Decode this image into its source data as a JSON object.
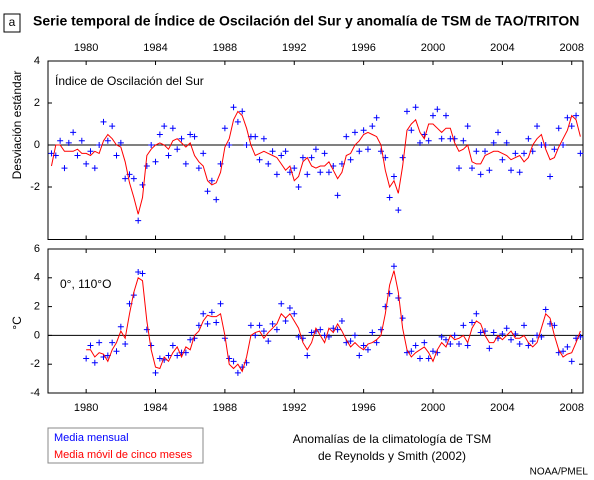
{
  "panel_label": "a",
  "title": "Serie temporal de Índice de Oscilación del Sur y anomalía de TSM de TAO/TRITON",
  "note": [
    "Anomalías de la climatología de TSM",
    "de Reynolds y Smith (2002)"
  ],
  "source": "NOAA/PMEL",
  "chart_data": [
    {
      "type": "line",
      "annotation": "Índice de Oscilación del Sur",
      "ylabel": "Desviación estándar",
      "xlim": [
        1977.8,
        2008.65
      ],
      "xticks": [
        1980,
        1984,
        1988,
        1992,
        1996,
        2000,
        2004,
        2008
      ],
      "xtick_side": "top",
      "ylim": [
        -4.5,
        4
      ],
      "yticks": [
        4,
        2,
        0,
        -2
      ],
      "zero_line": true,
      "x": [
        1978,
        1978.25,
        1978.5,
        1978.75,
        1979,
        1979.25,
        1979.5,
        1979.75,
        1980,
        1980.25,
        1980.5,
        1980.75,
        1981,
        1981.25,
        1981.5,
        1981.75,
        1982,
        1982.25,
        1982.5,
        1982.75,
        1983,
        1983.25,
        1983.5,
        1983.75,
        1984,
        1984.25,
        1984.5,
        1984.75,
        1985,
        1985.25,
        1985.5,
        1985.75,
        1986,
        1986.25,
        1986.5,
        1986.75,
        1987,
        1987.25,
        1987.5,
        1987.75,
        1988,
        1988.25,
        1988.5,
        1988.75,
        1989,
        1989.25,
        1989.5,
        1989.75,
        1990,
        1990.25,
        1990.5,
        1990.75,
        1991,
        1991.25,
        1991.5,
        1991.75,
        1992,
        1992.25,
        1992.5,
        1992.75,
        1993,
        1993.25,
        1993.5,
        1993.75,
        1994,
        1994.25,
        1994.5,
        1994.75,
        1995,
        1995.25,
        1995.5,
        1995.75,
        1996,
        1996.25,
        1996.5,
        1996.75,
        1997,
        1997.25,
        1997.5,
        1997.75,
        1998,
        1998.25,
        1998.5,
        1998.75,
        1999,
        1999.25,
        1999.5,
        1999.75,
        2000,
        2000.25,
        2000.5,
        2000.75,
        2001,
        2001.25,
        2001.5,
        2001.75,
        2002,
        2002.25,
        2002.5,
        2002.75,
        2003,
        2003.25,
        2003.5,
        2003.75,
        2004,
        2004.25,
        2004.5,
        2004.75,
        2005,
        2005.25,
        2005.5,
        2005.75,
        2006,
        2006.25,
        2006.5,
        2006.75,
        2007,
        2007.25,
        2007.5,
        2007.75,
        2008,
        2008.25,
        2008.5
      ],
      "series": [
        {
          "name": "Media mensual",
          "color": "#0000ff",
          "marker": "plus",
          "values": [
            -0.4,
            -0.5,
            0.2,
            -1.1,
            0.1,
            0.6,
            -0.5,
            0.2,
            -0.9,
            -0.3,
            -1.1,
            0.0,
            1.1,
            0.2,
            0.9,
            -0.5,
            0.1,
            -1.6,
            -1.4,
            -1.6,
            -3.6,
            -1.9,
            -1.0,
            0.0,
            -0.8,
            0.5,
            0.9,
            -0.5,
            0.8,
            -0.2,
            0.3,
            -0.9,
            0.5,
            0.4,
            -1.1,
            -0.4,
            -2.2,
            -1.7,
            -2.6,
            -0.9,
            0.8,
            0.0,
            1.8,
            1.1,
            1.6,
            0.0,
            0.4,
            0.4,
            -0.7,
            0.3,
            -0.9,
            -0.3,
            -1.4,
            -0.5,
            -0.3,
            -1.3,
            -1.1,
            -2.0,
            -0.6,
            -1.4,
            -0.6,
            -0.2,
            -1.3,
            -0.4,
            -1.3,
            -1.0,
            -2.4,
            -0.9,
            0.4,
            -0.7,
            0.6,
            -0.3,
            0.7,
            -0.2,
            0.9,
            1.3,
            -0.3,
            -0.6,
            -2.5,
            -1.5,
            -3.1,
            -0.6,
            1.6,
            0.7,
            1.8,
            0.1,
            0.5,
            0.2,
            1.4,
            1.7,
            0.3,
            1.4,
            0.3,
            0.3,
            -1.1,
            0.2,
            0.9,
            -1.1,
            -0.3,
            -1.4,
            -0.3,
            -1.2,
            0.1,
            0.6,
            -0.7,
            0.1,
            -1.2,
            -0.4,
            -1.3,
            -0.4,
            0.3,
            -0.3,
            0.9,
            0.0,
            0.0,
            -1.5,
            -0.2,
            0.8,
            0.0,
            1.3,
            0.9,
            1.4,
            -0.4
          ]
        },
        {
          "name": "Media móvil de cinco meses",
          "color": "#ff0000",
          "marker": "line",
          "values": [
            -1.0,
            0,
            0,
            -0.3,
            -0.3,
            -0.3,
            -0.2,
            -0.4,
            -0.4,
            -0.5,
            -0.3,
            -0.4,
            0.2,
            0.5,
            0.3,
            0.0,
            -0.1,
            -0.8,
            -1.8,
            -2.5,
            -3.3,
            -2.5,
            -0.5,
            -0.2,
            0.0,
            0.1,
            0.0,
            -0.2,
            0.2,
            0.3,
            0.1,
            -0.1,
            0.1,
            -0.5,
            -0.8,
            -1.0,
            -1.7,
            -1.9,
            -1.8,
            -1.3,
            -0.1,
            0.3,
            1.2,
            1.6,
            1.4,
            0.8,
            0.0,
            -0.5,
            -0.4,
            -0.3,
            -0.4,
            -0.5,
            -0.6,
            -0.9,
            -1.2,
            -1.0,
            -1.7,
            -1.5,
            -0.8,
            -0.6,
            -1.0,
            -1.1,
            -1.0,
            -1.0,
            -0.8,
            -1.2,
            -1.6,
            -1.3,
            -0.5,
            -0.4,
            0.0,
            0.2,
            0.5,
            0.6,
            0.5,
            0.4,
            0.0,
            -1.2,
            -2.0,
            -1.7,
            -2.3,
            -1.0,
            0.7,
            1.0,
            1.2,
            0.6,
            0.3,
            1.0,
            1.0,
            0.8,
            0.6,
            0.8,
            0.8,
            0.1,
            -0.3,
            -0.2,
            0.0,
            -0.8,
            -0.9,
            -0.9,
            -0.5,
            -0.4,
            -0.3,
            -0.3,
            -0.4,
            -0.5,
            -0.7,
            -0.6,
            -0.5,
            -0.8,
            -0.6,
            0.0,
            0.3,
            0.5,
            -0.2,
            -0.7,
            -0.6,
            -0.1,
            0.3,
            0.7,
            1.4,
            1.2,
            0.4
          ]
        }
      ]
    },
    {
      "type": "line",
      "annotation": "0°, 110°O",
      "ylabel": "°C",
      "xlim": [
        1977.8,
        2008.65
      ],
      "xticks": [
        1980,
        1984,
        1988,
        1992,
        1996,
        2000,
        2004,
        2008
      ],
      "xtick_side": "bottom",
      "ylim": [
        -4,
        6
      ],
      "yticks": [
        6,
        4,
        2,
        0,
        -2,
        -4
      ],
      "zero_line": true,
      "x": [
        1978,
        1978.25,
        1978.5,
        1978.75,
        1979,
        1979.25,
        1979.5,
        1979.75,
        1980,
        1980.25,
        1980.5,
        1980.75,
        1981,
        1981.25,
        1981.5,
        1981.75,
        1982,
        1982.25,
        1982.5,
        1982.75,
        1983,
        1983.25,
        1983.5,
        1983.75,
        1984,
        1984.25,
        1984.5,
        1984.75,
        1985,
        1985.25,
        1985.5,
        1985.75,
        1986,
        1986.25,
        1986.5,
        1986.75,
        1987,
        1987.25,
        1987.5,
        1987.75,
        1988,
        1988.25,
        1988.5,
        1988.75,
        1989,
        1989.25,
        1989.5,
        1989.75,
        1990,
        1990.25,
        1990.5,
        1990.75,
        1991,
        1991.25,
        1991.5,
        1991.75,
        1992,
        1992.25,
        1992.5,
        1992.75,
        1993,
        1993.25,
        1993.5,
        1993.75,
        1994,
        1994.25,
        1994.5,
        1994.75,
        1995,
        1995.25,
        1995.5,
        1995.75,
        1996,
        1996.25,
        1996.5,
        1996.75,
        1997,
        1997.25,
        1997.5,
        1997.75,
        1998,
        1998.25,
        1998.5,
        1998.75,
        1999,
        1999.25,
        1999.5,
        1999.75,
        2000,
        2000.25,
        2000.5,
        2000.75,
        2001,
        2001.25,
        2001.5,
        2001.75,
        2002,
        2002.25,
        2002.5,
        2002.75,
        2003,
        2003.25,
        2003.5,
        2003.75,
        2004,
        2004.25,
        2004.5,
        2004.75,
        2005,
        2005.25,
        2005.5,
        2005.75,
        2006,
        2006.25,
        2006.5,
        2006.75,
        2007,
        2007.25,
        2007.5,
        2007.75,
        2008,
        2008.25,
        2008.5
      ],
      "series": [
        {
          "color": "#0000ff",
          "marker": "plus",
          "values": [
            null,
            null,
            null,
            null,
            null,
            null,
            null,
            null,
            -1.6,
            -0.7,
            -1.9,
            -0.5,
            -1.5,
            -1.4,
            -0.5,
            -1.1,
            0.6,
            -0.6,
            2.2,
            2.8,
            4.4,
            4.3,
            0.4,
            -0.7,
            -2.6,
            -1.6,
            -1.7,
            -1.4,
            -0.7,
            -1.4,
            -1.2,
            -1.2,
            -0.3,
            -0.2,
            0.7,
            1.5,
            0.8,
            1.6,
            0.9,
            2.2,
            -0.2,
            -1.6,
            -1.8,
            -2.6,
            -2.2,
            -1.9,
            0.7,
            0.0,
            0.7,
            0.3,
            -0.4,
            0.8,
            0.4,
            2.2,
            1.0,
            1.9,
            1.5,
            -0.1,
            -0.2,
            -1.4,
            0.2,
            0.3,
            0.4,
            0.0,
            -0.1,
            0.5,
            0.4,
            1.0,
            -0.5,
            -0.4,
            0.0,
            -1.4,
            -0.7,
            -1.0,
            0.2,
            -0.5,
            0.4,
            2.0,
            2.9,
            4.8,
            2.6,
            1.2,
            -1.2,
            -1.1,
            -0.7,
            -1.6,
            -0.5,
            -1.6,
            -1.1,
            -1.2,
            -0.1,
            -0.3,
            -0.6,
            0.0,
            -0.6,
            0.7,
            -0.7,
            0.9,
            1.5,
            0.2,
            0.3,
            -0.9,
            0.2,
            -0.2,
            0.1,
            0.5,
            -0.3,
            0.1,
            -0.6,
            0.7,
            -0.7,
            -0.4,
            0.0,
            -0.1,
            1.8,
            0.8,
            0.7,
            -1.2,
            -1.1,
            -0.8,
            -1.8,
            -0.2,
            -0.1
          ]
        },
        {
          "color": "#ff0000",
          "marker": "line",
          "values": [
            null,
            null,
            null,
            null,
            null,
            null,
            null,
            null,
            -1.0,
            -1.0,
            -1.5,
            -1.2,
            -1.3,
            -1.8,
            -1.0,
            -0.5,
            0.3,
            -0.2,
            1.5,
            3.0,
            4.0,
            3.8,
            1.0,
            -1.0,
            -2.2,
            -2.3,
            -1.5,
            -1.8,
            -1.2,
            -0.8,
            -1.5,
            -0.8,
            -1.0,
            0.0,
            0.3,
            1.0,
            1.4,
            1.3,
            1.3,
            1.5,
            0.0,
            -2.0,
            -2.3,
            -2.0,
            -2.5,
            -1.5,
            0.0,
            0.2,
            0.3,
            -0.2,
            0.2,
            0.5,
            0.8,
            1.5,
            1.2,
            1.5,
            1.0,
            0.5,
            -0.5,
            -1.0,
            -0.5,
            0.5,
            0.0,
            -0.5,
            0.5,
            0.2,
            0.8,
            0.3,
            -0.3,
            -0.8,
            -0.5,
            -0.8,
            -1.0,
            -0.6,
            -0.5,
            -0.3,
            0.0,
            1.5,
            3.5,
            4.5,
            3.0,
            0.5,
            -1.0,
            -1.5,
            -1.2,
            -1.0,
            -0.8,
            -1.2,
            -1.8,
            -1.0,
            -0.5,
            -0.8,
            0.0,
            -0.3,
            -0.2,
            0.0,
            -0.5,
            0.5,
            1.0,
            0.8,
            0.0,
            -0.5,
            -0.5,
            0.0,
            -0.3,
            0.0,
            0.3,
            -0.2,
            -0.2,
            0.0,
            -0.5,
            -0.8,
            -0.5,
            0.5,
            1.5,
            1.2,
            0.0,
            -1.0,
            -1.5,
            -1.3,
            -1.2,
            -0.5,
            0.3
          ]
        }
      ]
    }
  ]
}
